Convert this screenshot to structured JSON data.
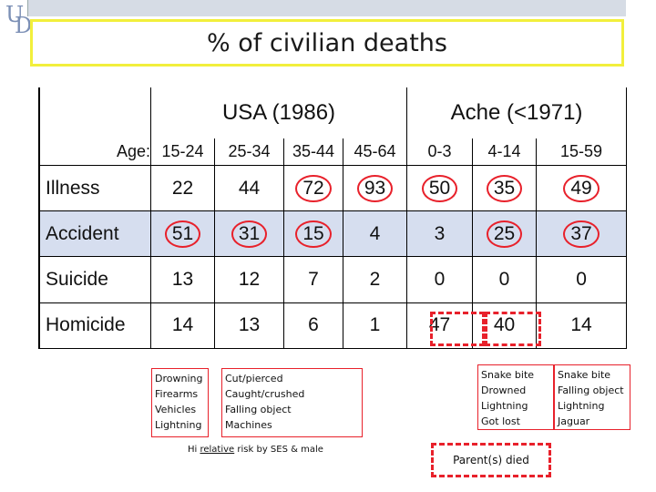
{
  "title": "% of civilian deaths",
  "groups": {
    "usa": "USA (1986)",
    "ache": "Ache (<1971)"
  },
  "age_label": "Age:",
  "age_ranges": [
    "15-24",
    "25-34",
    "35-44",
    "45-64",
    "0-3",
    "4-14",
    "15-59"
  ],
  "rows": [
    {
      "label": "Illness",
      "values": [
        "22",
        "44",
        "72",
        "93",
        "50",
        "35",
        "49"
      ]
    },
    {
      "label": "Accident",
      "values": [
        "51",
        "31",
        "15",
        "4",
        "3",
        "25",
        "37"
      ]
    },
    {
      "label": "Suicide",
      "values": [
        "13",
        "12",
        "7",
        "2",
        "0",
        "0",
        "0"
      ]
    },
    {
      "label": "Homicide",
      "values": [
        "14",
        "13",
        "6",
        "1",
        "47",
        "40",
        "14"
      ]
    }
  ],
  "notes": {
    "accident_usa_young": [
      "Drowning",
      "Firearms",
      "Vehicles",
      "Lightning"
    ],
    "accident_usa_mid": [
      "Cut/pierced",
      "Caught/crushed",
      "Falling object",
      "Machines"
    ],
    "ses_prefix": "Hi ",
    "ses_underlined": "relative",
    "ses_suffix": " risk by SES & male",
    "ache_child": [
      "Snake bite",
      "Drowned",
      "Lightning",
      "Got lost"
    ],
    "ache_adult": [
      "Snake bite",
      "Falling object",
      "Lightning",
      "Jaguar"
    ],
    "parent_died": "Parent(s) died"
  },
  "colors": {
    "title_border": "#f2ef3c",
    "highlight": "#e8212b",
    "shade": "#d6deef",
    "topbar": "#d6dce5"
  }
}
